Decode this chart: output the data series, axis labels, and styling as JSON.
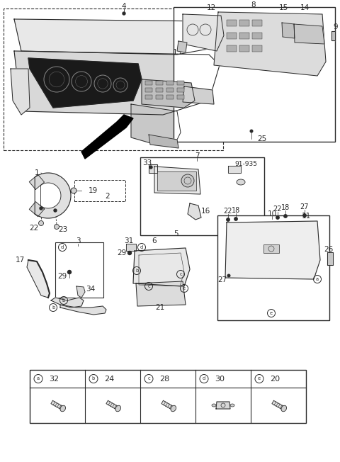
{
  "bg_color": "#ffffff",
  "line_color": "#2a2a2a",
  "table_items": [
    {
      "key": "a",
      "num": "32"
    },
    {
      "key": "b",
      "num": "24"
    },
    {
      "key": "c",
      "num": "28"
    },
    {
      "key": "d",
      "num": "30"
    },
    {
      "key": "e",
      "num": "20"
    }
  ],
  "font_size": 7.5
}
